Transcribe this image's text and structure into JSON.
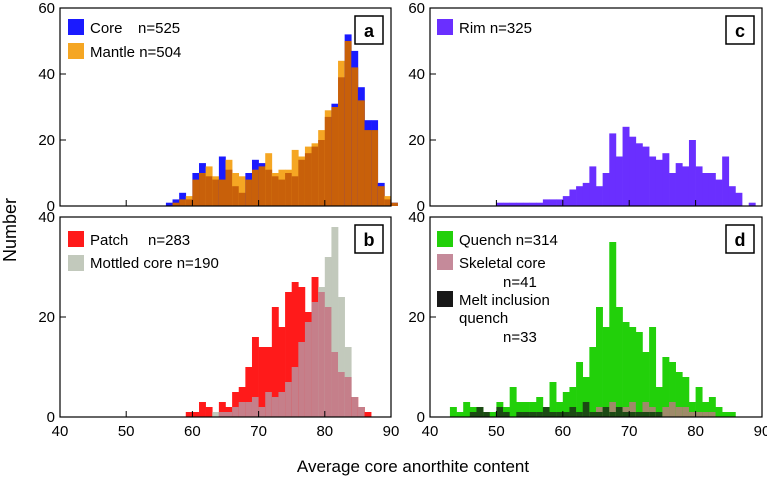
{
  "figure": {
    "ylabel": "Number",
    "xlabel": "Average core anorthite content",
    "colors": {
      "core": "#1a1aff",
      "mantle": "#f5a623",
      "overlap_am": "#c8600a",
      "rim": "#6a2fff",
      "patch": "#ff1a1a",
      "mottled": "#c2c9bc",
      "overlap_b": "#c57f8a",
      "quench": "#22d00a",
      "skeletal": "#c58a9a",
      "melt": "#181818",
      "overlap_q_s": "#9f8a6a",
      "overlap_q_m": "#1c4a14"
    }
  },
  "chart_data": [
    {
      "id": "a",
      "type": "bar",
      "panel_label": "a",
      "xlim": [
        40,
        90
      ],
      "ylim": [
        0,
        60
      ],
      "bin_start": 40,
      "bin_width": 1,
      "yticks": [
        0,
        20,
        40,
        60
      ],
      "xticks": [
        40,
        50,
        60,
        70,
        80,
        90
      ],
      "series": [
        {
          "name": "Core",
          "n": "n=525",
          "label": "Core",
          "count_text": "n=525",
          "color_key": "core",
          "values": [
            0,
            0,
            0,
            0,
            0,
            0,
            0,
            0,
            0,
            0,
            0,
            0,
            0,
            0,
            0,
            0,
            1,
            2,
            4,
            2,
            10,
            13,
            9,
            8,
            15,
            11,
            6,
            4,
            10,
            14,
            13,
            11,
            9,
            8,
            10,
            9,
            14,
            16,
            18,
            20,
            27,
            31,
            39,
            52,
            47,
            36,
            26,
            26,
            7,
            2,
            1,
            0,
            0
          ]
        },
        {
          "name": "Mantle",
          "n": "n=504",
          "label": "Mantle",
          "count_text": "n=504",
          "color_key": "mantle",
          "values": [
            0,
            0,
            0,
            0,
            0,
            0,
            0,
            0,
            0,
            0,
            0,
            0,
            0,
            0,
            0,
            0,
            0,
            1,
            2,
            3,
            8,
            10,
            12,
            9,
            8,
            14,
            10,
            9,
            8,
            11,
            12,
            16,
            10,
            11,
            11,
            17,
            15,
            18,
            19,
            23,
            29,
            30,
            44,
            50,
            42,
            32,
            23,
            23,
            6,
            3,
            1,
            0,
            0
          ]
        }
      ]
    },
    {
      "id": "b",
      "type": "bar",
      "panel_label": "b",
      "xlim": [
        40,
        90
      ],
      "ylim": [
        0,
        40
      ],
      "bin_start": 40,
      "bin_width": 1,
      "yticks": [
        0,
        20,
        40
      ],
      "xticks": [
        40,
        50,
        60,
        70,
        80,
        90
      ],
      "series": [
        {
          "name": "Patch",
          "n": "n=283",
          "label": "Patch",
          "count_text": "n=283",
          "color_key": "patch",
          "values": [
            0,
            0,
            0,
            0,
            0,
            0,
            0,
            0,
            0,
            0,
            0,
            0,
            0,
            0,
            0,
            0,
            0,
            0,
            0,
            1,
            1,
            3,
            2,
            0,
            3,
            2,
            5,
            6,
            10,
            16,
            14,
            14,
            22,
            18,
            25,
            27,
            26,
            21,
            28,
            25,
            22,
            13,
            9,
            8,
            4,
            2,
            1,
            0,
            0,
            0
          ]
        },
        {
          "name": "Mottled core",
          "n": "n=190",
          "label": "Mottled core",
          "count_text": "n=190",
          "color_key": "mottled",
          "values": [
            0,
            0,
            0,
            0,
            0,
            0,
            0,
            0,
            0,
            0,
            0,
            0,
            0,
            0,
            0,
            0,
            0,
            0,
            0,
            0,
            0,
            0,
            0,
            1,
            1,
            1,
            2,
            3,
            3,
            4,
            2,
            5,
            4,
            5,
            7,
            10,
            15,
            19,
            23,
            26,
            32,
            38,
            24,
            14,
            4,
            2,
            0,
            0,
            0,
            0
          ]
        }
      ]
    },
    {
      "id": "c",
      "type": "bar",
      "panel_label": "c",
      "xlim": [
        40,
        90
      ],
      "ylim": [
        0,
        60
      ],
      "bin_start": 40,
      "bin_width": 1,
      "yticks": [
        0,
        20,
        40,
        60
      ],
      "xticks": [
        40,
        50,
        60,
        70,
        80,
        90
      ],
      "series": [
        {
          "name": "Rim",
          "n": "n=325",
          "label": "Rim",
          "count_text": "n=325",
          "color_key": "rim",
          "values": [
            0,
            0,
            0,
            0,
            0,
            0,
            0,
            0,
            0,
            0,
            1,
            1,
            1,
            1,
            1,
            1,
            1,
            2,
            2,
            2,
            3,
            5,
            6,
            7,
            12,
            6,
            10,
            22,
            15,
            24,
            21,
            19,
            18,
            15,
            14,
            16,
            10,
            13,
            12,
            20,
            12,
            10,
            10,
            8,
            15,
            6,
            4,
            0,
            1,
            0,
            0,
            0
          ]
        }
      ]
    },
    {
      "id": "d",
      "type": "bar",
      "panel_label": "d",
      "xlim": [
        40,
        90
      ],
      "ylim": [
        0,
        40
      ],
      "bin_start": 40,
      "bin_width": 1,
      "yticks": [
        0,
        20,
        40
      ],
      "xticks": [
        40,
        50,
        60,
        70,
        80,
        90
      ],
      "series": [
        {
          "name": "Quench",
          "n": "n=314",
          "label": "Quench n=314",
          "count_text": "",
          "color_key": "quench",
          "values": [
            0,
            0,
            0,
            2,
            1,
            3,
            2,
            2,
            1,
            1,
            3,
            2,
            6,
            3,
            3,
            3,
            4,
            2,
            7,
            3,
            5,
            6,
            11,
            8,
            14,
            22,
            18,
            35,
            22,
            19,
            18,
            17,
            13,
            18,
            6,
            12,
            11,
            9,
            8,
            3,
            6,
            3,
            4,
            2,
            1,
            1,
            0,
            0,
            0,
            0
          ]
        },
        {
          "name": "Skeletal core",
          "n": "n=41",
          "label": "Skeletal core",
          "count_text": "n=41",
          "color_key": "skeletal",
          "values": [
            0,
            0,
            0,
            0,
            0,
            0,
            0,
            0,
            0,
            0,
            0,
            0,
            0,
            0,
            0,
            0,
            0,
            0,
            0,
            0,
            0,
            0,
            1,
            0,
            1,
            2,
            2,
            3,
            2,
            2,
            3,
            1,
            3,
            2,
            1,
            2,
            3,
            2,
            2,
            1,
            1,
            1,
            1,
            0,
            0,
            0,
            0,
            0,
            0,
            0
          ]
        },
        {
          "name": "Melt inclusion quench",
          "n": "n=33",
          "label": "Melt inclusion",
          "label2": "quench",
          "count_text": "n=33",
          "color_key": "melt",
          "values": [
            0,
            0,
            0,
            0,
            0,
            0,
            1,
            2,
            1,
            0,
            2,
            1,
            0,
            1,
            1,
            1,
            1,
            2,
            1,
            1,
            1,
            2,
            1,
            3,
            1,
            1,
            2,
            1,
            2,
            1,
            1,
            1,
            1,
            1,
            1,
            0,
            0,
            0,
            0,
            0,
            0,
            0,
            0,
            0,
            0,
            0,
            0,
            0,
            0,
            0
          ]
        }
      ]
    }
  ]
}
